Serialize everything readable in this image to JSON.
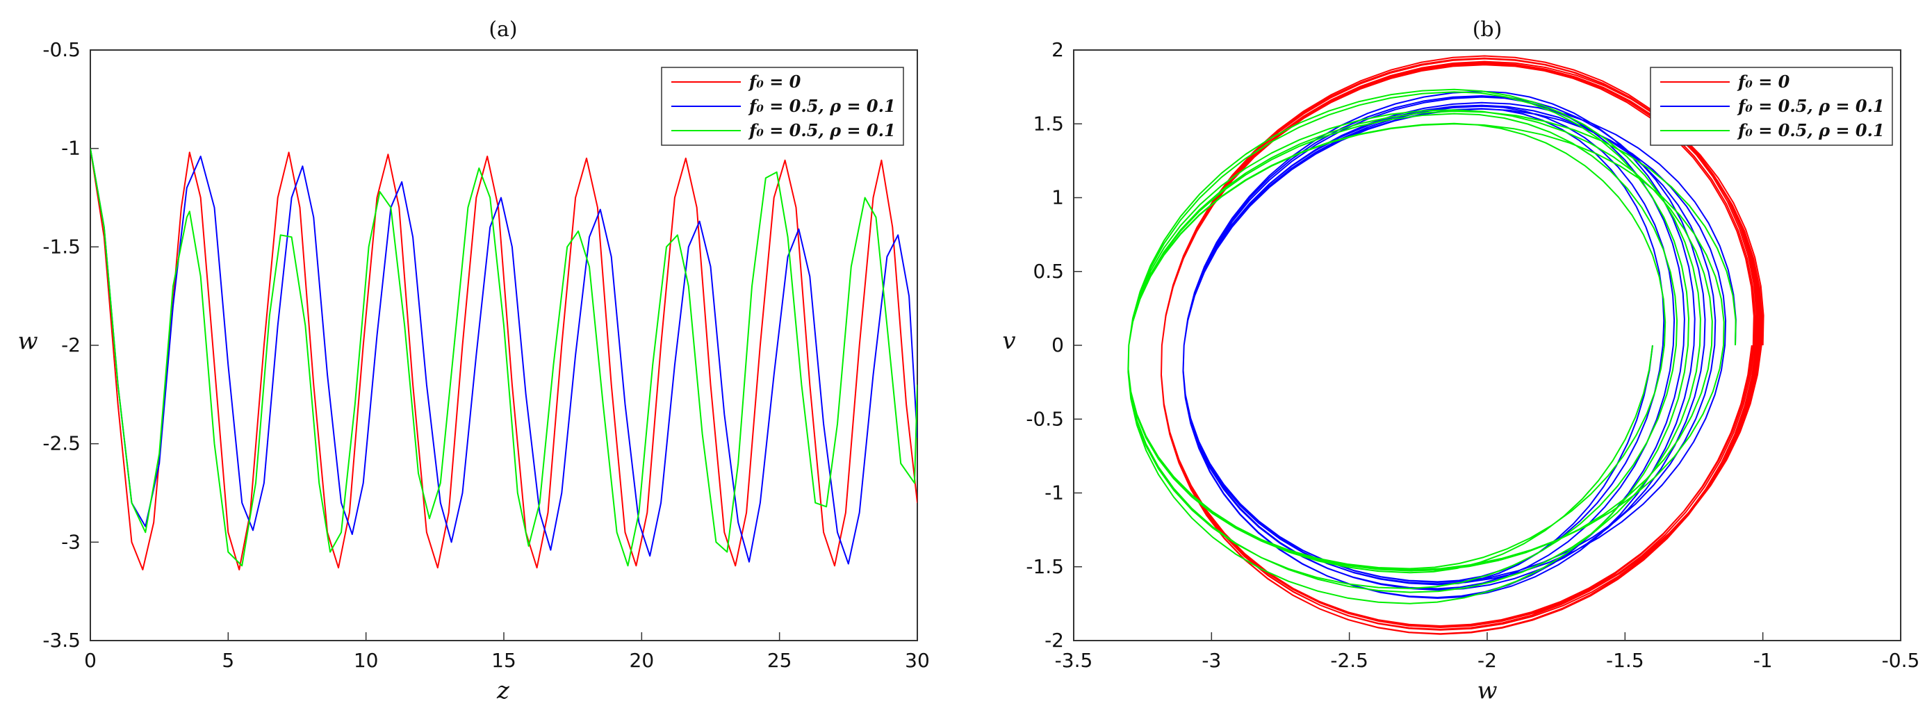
{
  "chart_data": [
    {
      "type": "line",
      "panel_label": "(a)",
      "xlabel": "z",
      "ylabel": "w",
      "xlim": [
        0,
        30
      ],
      "ylim": [
        -3.5,
        -0.5
      ],
      "xticks": [
        "0",
        "5",
        "10",
        "15",
        "20",
        "25",
        "30"
      ],
      "yticks": [
        "-0.5",
        "-1",
        "-1.5",
        "-2",
        "-2.5",
        "-3",
        "-3.5"
      ],
      "grid": false,
      "legend_position": "top-right",
      "series": [
        {
          "name": "f₀ = 0",
          "color": "#ff0000",
          "x": [
            0,
            0.5,
            1.0,
            1.5,
            1.9,
            2.3,
            2.8,
            3.3,
            3.6,
            4.0,
            4.5,
            5.0,
            5.4,
            5.8,
            6.3,
            6.8,
            7.2,
            7.6,
            8.1,
            8.6,
            9.0,
            9.4,
            9.9,
            10.4,
            10.8,
            11.2,
            11.7,
            12.2,
            12.6,
            13.0,
            13.5,
            14.0,
            14.4,
            14.8,
            15.3,
            15.8,
            16.2,
            16.6,
            17.1,
            17.6,
            18.0,
            18.4,
            18.9,
            19.4,
            19.8,
            20.2,
            20.7,
            21.2,
            21.6,
            22.0,
            22.5,
            23.0,
            23.4,
            23.8,
            24.3,
            24.8,
            25.2,
            25.6,
            26.1,
            26.6,
            27.0,
            27.4,
            27.9,
            28.4,
            28.7,
            29.1,
            29.6,
            30.0
          ],
          "y": [
            -1.0,
            -1.45,
            -2.3,
            -3.0,
            -3.14,
            -2.9,
            -2.1,
            -1.3,
            -1.02,
            -1.25,
            -2.1,
            -2.95,
            -3.14,
            -2.85,
            -2.0,
            -1.25,
            -1.02,
            -1.3,
            -2.2,
            -2.95,
            -3.13,
            -2.85,
            -2.0,
            -1.25,
            -1.03,
            -1.3,
            -2.2,
            -2.95,
            -3.13,
            -2.85,
            -2.0,
            -1.25,
            -1.04,
            -1.3,
            -2.2,
            -2.95,
            -3.13,
            -2.85,
            -2.0,
            -1.25,
            -1.05,
            -1.3,
            -2.2,
            -2.95,
            -3.12,
            -2.85,
            -2.0,
            -1.25,
            -1.05,
            -1.3,
            -2.2,
            -2.95,
            -3.12,
            -2.85,
            -2.0,
            -1.25,
            -1.06,
            -1.3,
            -2.2,
            -2.95,
            -3.12,
            -2.85,
            -2.0,
            -1.25,
            -1.06,
            -1.4,
            -2.3,
            -2.8
          ]
        },
        {
          "name": "f₀ = 0.5, ρ = 0.1",
          "color": "#0000ff",
          "x": [
            0,
            0.5,
            1.0,
            1.5,
            2.0,
            2.5,
            3.0,
            3.5,
            4.0,
            4.5,
            5.0,
            5.5,
            5.9,
            6.3,
            6.8,
            7.3,
            7.7,
            8.1,
            8.6,
            9.1,
            9.5,
            9.9,
            10.4,
            10.9,
            11.3,
            11.7,
            12.2,
            12.7,
            13.1,
            13.5,
            14.0,
            14.5,
            14.9,
            15.3,
            15.8,
            16.3,
            16.7,
            17.1,
            17.6,
            18.1,
            18.5,
            18.9,
            19.4,
            19.9,
            20.3,
            20.7,
            21.2,
            21.7,
            22.1,
            22.5,
            23.0,
            23.5,
            23.9,
            24.3,
            24.8,
            25.3,
            25.7,
            26.1,
            26.6,
            27.1,
            27.5,
            27.9,
            28.4,
            28.9,
            29.3,
            29.7,
            30.0
          ],
          "y": [
            -1.0,
            -1.4,
            -2.2,
            -2.8,
            -2.92,
            -2.6,
            -1.8,
            -1.2,
            -1.04,
            -1.3,
            -2.1,
            -2.8,
            -2.94,
            -2.7,
            -1.9,
            -1.25,
            -1.09,
            -1.35,
            -2.15,
            -2.8,
            -2.96,
            -2.7,
            -1.95,
            -1.3,
            -1.17,
            -1.45,
            -2.2,
            -2.8,
            -3.0,
            -2.75,
            -2.05,
            -1.4,
            -1.25,
            -1.5,
            -2.25,
            -2.85,
            -3.04,
            -2.75,
            -2.05,
            -1.45,
            -1.31,
            -1.55,
            -2.3,
            -2.9,
            -3.07,
            -2.8,
            -2.1,
            -1.5,
            -1.37,
            -1.6,
            -2.35,
            -2.9,
            -3.1,
            -2.8,
            -2.15,
            -1.55,
            -1.41,
            -1.65,
            -2.4,
            -2.95,
            -3.11,
            -2.85,
            -2.15,
            -1.55,
            -1.44,
            -1.75,
            -2.47
          ]
        },
        {
          "name": "f₀ = 0.5, ρ = 0.1",
          "color": "#00ee00",
          "x": [
            0,
            0.5,
            1.0,
            1.5,
            2.0,
            2.5,
            3.0,
            3.5,
            3.6,
            4.0,
            4.5,
            5.0,
            5.5,
            6.0,
            6.5,
            6.9,
            7.3,
            7.8,
            8.3,
            8.7,
            9.1,
            9.6,
            10.1,
            10.5,
            10.9,
            11.4,
            11.9,
            12.3,
            12.7,
            13.2,
            13.7,
            14.1,
            14.5,
            15.0,
            15.5,
            15.9,
            16.3,
            16.8,
            17.3,
            17.7,
            18.1,
            18.6,
            19.1,
            19.5,
            19.9,
            20.4,
            20.9,
            21.3,
            21.7,
            22.2,
            22.7,
            23.1,
            23.5,
            24.0,
            24.5,
            24.9,
            25.3,
            25.8,
            26.3,
            26.7,
            27.1,
            27.6,
            28.1,
            28.5,
            28.9,
            29.4,
            29.9,
            30.0
          ],
          "y": [
            -1.0,
            -1.4,
            -2.2,
            -2.8,
            -2.95,
            -2.55,
            -1.7,
            -1.35,
            -1.32,
            -1.65,
            -2.5,
            -3.05,
            -3.12,
            -2.7,
            -1.85,
            -1.44,
            -1.45,
            -1.9,
            -2.7,
            -3.05,
            -2.95,
            -2.3,
            -1.5,
            -1.22,
            -1.3,
            -1.9,
            -2.65,
            -2.88,
            -2.7,
            -2.0,
            -1.3,
            -1.1,
            -1.25,
            -1.9,
            -2.75,
            -3.02,
            -2.8,
            -2.1,
            -1.5,
            -1.42,
            -1.6,
            -2.3,
            -2.95,
            -3.12,
            -2.85,
            -2.1,
            -1.5,
            -1.44,
            -1.7,
            -2.45,
            -3.0,
            -3.05,
            -2.6,
            -1.7,
            -1.15,
            -1.12,
            -1.45,
            -2.2,
            -2.8,
            -2.82,
            -2.4,
            -1.6,
            -1.25,
            -1.35,
            -1.9,
            -2.6,
            -2.7,
            -2.2
          ]
        }
      ]
    },
    {
      "type": "line",
      "panel_label": "(b)",
      "xlabel": "w",
      "ylabel": "v",
      "xlim": [
        -3.5,
        -0.5
      ],
      "ylim": [
        -2,
        2
      ],
      "xticks": [
        "-3.5",
        "-3",
        "-2.5",
        "-2",
        "-1.5",
        "-1",
        "-0.5"
      ],
      "yticks": [
        "2",
        "1.5",
        "1",
        "0.5",
        "0",
        "-0.5",
        "-1",
        "-1.5",
        "-2"
      ],
      "grid": false,
      "legend_position": "top-right",
      "series": [
        {
          "name": "f₀ = 0",
          "color": "#ff0000",
          "center": [
            -2.09,
            0
          ],
          "radius_w": [
            1.05,
            1.09
          ],
          "radius_v": [
            1.9,
            1.96
          ],
          "turns": 8
        },
        {
          "name": "f₀ = 0.5, ρ = 0.1",
          "color": "#0000ff",
          "center": [
            -2.1,
            0
          ],
          "radius_w": [
            0.7,
            1.0
          ],
          "radius_v": [
            1.6,
            1.72
          ],
          "turns": 8
        },
        {
          "name": "f₀ = 0.5, ρ = 0.1",
          "color": "#00ee00",
          "center": [
            -2.2,
            0
          ],
          "radius_w": [
            0.8,
            1.1
          ],
          "radius_v": [
            1.5,
            1.75
          ],
          "turns": 7
        }
      ]
    }
  ]
}
